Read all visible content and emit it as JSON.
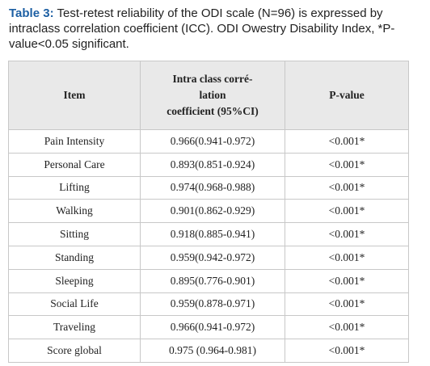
{
  "caption": {
    "label": "Table 3:",
    "text": "Test-retest reliability of the ODI scale (N=96) is expressed by intraclass correlation coefficient (ICC). ODI Owestry Disability Index, *P-value<0.05 significant."
  },
  "table": {
    "header": {
      "item": "Item",
      "icc": [
        "Intra class corré-",
        "lation",
        "coefficient (95%CI)"
      ],
      "p": "P-value"
    },
    "rows": [
      [
        "Pain Intensity",
        "0.966(0.941-0.972)",
        "<0.001*"
      ],
      [
        "Personal Care",
        "0.893(0.851-0.924)",
        "<0.001*"
      ],
      [
        "Lifting",
        "0.974(0.968-0.988)",
        "<0.001*"
      ],
      [
        "Walking",
        "0.901(0.862-0.929)",
        "<0.001*"
      ],
      [
        "Sitting",
        "0.918(0.885-0.941)",
        "<0.001*"
      ],
      [
        "Standing",
        "0.959(0.942-0.972)",
        "<0.001*"
      ],
      [
        "Sleeping",
        "0.895(0.776-0.901)",
        "<0.001*"
      ],
      [
        "Social Life",
        "0.959(0.878-0.971)",
        "<0.001*"
      ],
      [
        "Traveling",
        "0.966(0.941-0.972)",
        "<0.001*"
      ],
      [
        "Score global",
        "0.975 (0.964-0.981)",
        "<0.001*"
      ]
    ]
  }
}
